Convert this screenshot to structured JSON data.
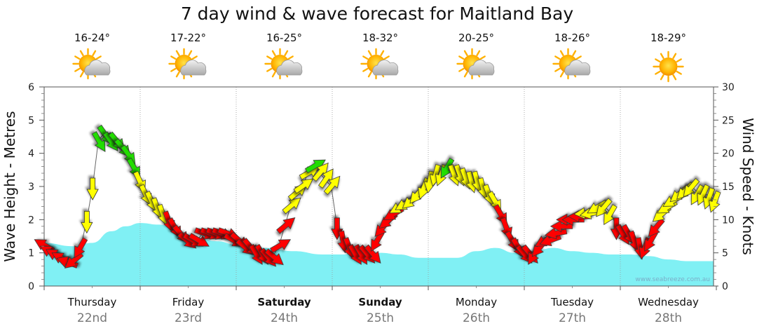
{
  "chart_data": {
    "type": "area",
    "title": "7 day wind & wave forecast for Maitland Bay",
    "ylabel_left": "Wave Height - Metres",
    "ylabel_right": "Wind Speed - Knots",
    "ylim_left": [
      0,
      6
    ],
    "ylim_right": [
      0,
      30
    ],
    "yticks_left": [
      "0",
      "1",
      "2",
      "3",
      "4",
      "5",
      "6"
    ],
    "yticks_right": [
      "0",
      "5",
      "10",
      "15",
      "20",
      "25",
      "30"
    ],
    "credit": "www.seabreeze.com.au",
    "grid": true,
    "days": [
      {
        "name": "Thursday",
        "date": "22nd",
        "temp": "16-24°",
        "icon": "sun-cloud-icon",
        "bold": false
      },
      {
        "name": "Friday",
        "date": "23rd",
        "temp": "17-22°",
        "icon": "sun-cloud-icon",
        "bold": false
      },
      {
        "name": "Saturday",
        "date": "24th",
        "temp": "16-25°",
        "icon": "sun-cloud-icon",
        "bold": true
      },
      {
        "name": "Sunday",
        "date": "25th",
        "temp": "18-32°",
        "icon": "sun-cloud-icon",
        "bold": true
      },
      {
        "name": "Monday",
        "date": "26th",
        "temp": "20-25°",
        "icon": "sun-cloud-icon",
        "bold": false
      },
      {
        "name": "Tuesday",
        "date": "27th",
        "temp": "18-26°",
        "icon": "sun-cloud-icon",
        "bold": false
      },
      {
        "name": "Wednesday",
        "date": "28th",
        "temp": "18-29°",
        "icon": "sun-icon",
        "bold": false
      }
    ],
    "wave_height": [
      [
        0.0,
        1.3
      ],
      [
        0.3,
        1.2
      ],
      [
        0.5,
        1.3
      ],
      [
        0.7,
        1.65
      ],
      [
        0.85,
        1.8
      ],
      [
        1.0,
        1.9
      ],
      [
        1.2,
        1.85
      ],
      [
        1.4,
        1.65
      ],
      [
        1.6,
        1.45
      ],
      [
        1.8,
        1.35
      ],
      [
        2.0,
        1.25
      ],
      [
        2.3,
        1.15
      ],
      [
        2.6,
        1.05
      ],
      [
        2.9,
        0.95
      ],
      [
        3.1,
        0.95
      ],
      [
        3.3,
        1.05
      ],
      [
        3.5,
        1.0
      ],
      [
        3.7,
        0.95
      ],
      [
        3.9,
        0.85
      ],
      [
        4.1,
        0.85
      ],
      [
        4.3,
        0.85
      ],
      [
        4.5,
        1.05
      ],
      [
        4.7,
        1.15
      ],
      [
        4.9,
        1.0
      ],
      [
        5.1,
        1.05
      ],
      [
        5.3,
        1.15
      ],
      [
        5.5,
        1.05
      ],
      [
        5.7,
        1.0
      ],
      [
        5.9,
        0.95
      ],
      [
        6.1,
        0.95
      ],
      [
        6.3,
        0.9
      ],
      [
        6.5,
        0.8
      ],
      [
        6.7,
        0.75
      ],
      [
        7.0,
        0.75
      ]
    ],
    "wind_colors": {
      "light": "#ff0000",
      "moderate": "#ffff00",
      "strong": "#22dd00"
    },
    "wind": [
      {
        "t": 0.0,
        "kn": 6,
        "dir": 300,
        "c": "light"
      },
      {
        "t": 0.08,
        "kn": 5,
        "dir": 300,
        "c": "light"
      },
      {
        "t": 0.16,
        "kn": 4.5,
        "dir": 300,
        "c": "light"
      },
      {
        "t": 0.24,
        "kn": 4,
        "dir": 300,
        "c": "light"
      },
      {
        "t": 0.32,
        "kn": 3.5,
        "dir": 290,
        "c": "light"
      },
      {
        "t": 0.4,
        "kn": 4,
        "dir": 230,
        "c": "light"
      },
      {
        "t": 0.48,
        "kn": 6,
        "dir": 210,
        "c": "light"
      },
      {
        "t": 0.56,
        "kn": 10,
        "dir": 180,
        "c": "moderate"
      },
      {
        "t": 0.64,
        "kn": 15,
        "dir": 180,
        "c": "moderate"
      },
      {
        "t": 0.72,
        "kn": 22,
        "dir": 150,
        "c": "strong"
      },
      {
        "t": 0.8,
        "kn": 23,
        "dir": 145,
        "c": "strong"
      },
      {
        "t": 0.88,
        "kn": 22,
        "dir": 145,
        "c": "strong"
      },
      {
        "t": 0.96,
        "kn": 22,
        "dir": 140,
        "c": "strong"
      },
      {
        "t": 1.04,
        "kn": 21,
        "dir": 140,
        "c": "strong"
      },
      {
        "t": 1.12,
        "kn": 20,
        "dir": 145,
        "c": "strong"
      },
      {
        "t": 1.2,
        "kn": 18,
        "dir": 150,
        "c": "strong"
      },
      {
        "t": 1.28,
        "kn": 16,
        "dir": 155,
        "c": "moderate"
      },
      {
        "t": 1.36,
        "kn": 14,
        "dir": 155,
        "c": "moderate"
      },
      {
        "t": 1.44,
        "kn": 13,
        "dir": 155,
        "c": "moderate"
      },
      {
        "t": 1.52,
        "kn": 12,
        "dir": 160,
        "c": "moderate"
      },
      {
        "t": 1.6,
        "kn": 11,
        "dir": 160,
        "c": "moderate"
      },
      {
        "t": 1.68,
        "kn": 10,
        "dir": 160,
        "c": "light"
      },
      {
        "t": 1.76,
        "kn": 9,
        "dir": 150,
        "c": "light"
      },
      {
        "t": 1.84,
        "kn": 8,
        "dir": 140,
        "c": "light"
      },
      {
        "t": 1.92,
        "kn": 7,
        "dir": 130,
        "c": "light"
      },
      {
        "t": 2.0,
        "kn": 7,
        "dir": 120,
        "c": "light"
      },
      {
        "t": 2.08,
        "kn": 7,
        "dir": 120,
        "c": "light"
      },
      {
        "t": 2.16,
        "kn": 8,
        "dir": 110,
        "c": "light"
      },
      {
        "t": 2.24,
        "kn": 8,
        "dir": 110,
        "c": "light"
      },
      {
        "t": 2.32,
        "kn": 8,
        "dir": 110,
        "c": "light"
      },
      {
        "t": 2.4,
        "kn": 8,
        "dir": 110,
        "c": "light"
      },
      {
        "t": 2.48,
        "kn": 8,
        "dir": 110,
        "c": "light"
      },
      {
        "t": 2.56,
        "kn": 7,
        "dir": 120,
        "c": "light"
      },
      {
        "t": 2.64,
        "kn": 7,
        "dir": 130,
        "c": "light"
      },
      {
        "t": 2.72,
        "kn": 6,
        "dir": 130,
        "c": "light"
      },
      {
        "t": 2.8,
        "kn": 6,
        "dir": 140,
        "c": "light"
      },
      {
        "t": 2.88,
        "kn": 5,
        "dir": 150,
        "c": "light"
      },
      {
        "t": 2.96,
        "kn": 5,
        "dir": 150,
        "c": "light"
      },
      {
        "t": 3.04,
        "kn": 4.5,
        "dir": 140,
        "c": "light"
      },
      {
        "t": 3.12,
        "kn": 4.5,
        "dir": 130,
        "c": "light"
      },
      {
        "t": 3.2,
        "kn": 6,
        "dir": 60,
        "c": "light"
      },
      {
        "t": 3.28,
        "kn": 9,
        "dir": 50,
        "c": "light"
      },
      {
        "t": 3.36,
        "kn": 12,
        "dir": 50,
        "c": "moderate"
      },
      {
        "t": 3.44,
        "kn": 14,
        "dir": 50,
        "c": "moderate"
      },
      {
        "t": 3.52,
        "kn": 15,
        "dir": 55,
        "c": "moderate"
      },
      {
        "t": 3.6,
        "kn": 17,
        "dir": 60,
        "c": "moderate"
      },
      {
        "t": 3.68,
        "kn": 18,
        "dir": 60,
        "c": "strong"
      },
      {
        "t": 3.76,
        "kn": 17,
        "dir": 40,
        "c": "moderate"
      },
      {
        "t": 3.84,
        "kn": 16,
        "dir": 35,
        "c": "moderate"
      },
      {
        "t": 3.92,
        "kn": 15,
        "dir": 40,
        "c": "moderate"
      },
      {
        "t": 4.0,
        "kn": 9,
        "dir": 180,
        "c": "light"
      },
      {
        "t": 4.08,
        "kn": 7,
        "dir": 170,
        "c": "light"
      },
      {
        "t": 4.16,
        "kn": 6,
        "dir": 160,
        "c": "light"
      },
      {
        "t": 4.24,
        "kn": 5,
        "dir": 150,
        "c": "light"
      },
      {
        "t": 4.32,
        "kn": 5,
        "dir": 150,
        "c": "light"
      },
      {
        "t": 4.4,
        "kn": 5,
        "dir": 140,
        "c": "light"
      },
      {
        "t": 4.48,
        "kn": 5,
        "dir": 140,
        "c": "light"
      },
      {
        "t": 4.56,
        "kn": 7,
        "dir": 210,
        "c": "light"
      },
      {
        "t": 4.64,
        "kn": 9,
        "dir": 220,
        "c": "light"
      },
      {
        "t": 4.72,
        "kn": 10,
        "dir": 230,
        "c": "light"
      },
      {
        "t": 4.8,
        "kn": 11,
        "dir": 240,
        "c": "light"
      },
      {
        "t": 4.88,
        "kn": 12,
        "dir": 240,
        "c": "moderate"
      },
      {
        "t": 4.96,
        "kn": 12.5,
        "dir": 240,
        "c": "moderate"
      },
      {
        "t": 5.04,
        "kn": 13,
        "dir": 230,
        "c": "moderate"
      },
      {
        "t": 5.12,
        "kn": 14,
        "dir": 220,
        "c": "moderate"
      },
      {
        "t": 5.2,
        "kn": 15,
        "dir": 200,
        "c": "moderate"
      },
      {
        "t": 5.28,
        "kn": 16,
        "dir": 190,
        "c": "moderate"
      },
      {
        "t": 5.36,
        "kn": 17,
        "dir": 195,
        "c": "moderate"
      },
      {
        "t": 5.44,
        "kn": 17,
        "dir": 200,
        "c": "moderate"
      },
      {
        "t": 5.52,
        "kn": 18,
        "dir": 210,
        "c": "strong"
      },
      {
        "t": 5.6,
        "kn": 17,
        "dir": 160,
        "c": "moderate"
      },
      {
        "t": 5.68,
        "kn": 17,
        "dir": 160,
        "c": "moderate"
      },
      {
        "t": 5.76,
        "kn": 16.5,
        "dir": 160,
        "c": "moderate"
      },
      {
        "t": 5.84,
        "kn": 16,
        "dir": 165,
        "c": "moderate"
      },
      {
        "t": 5.92,
        "kn": 16,
        "dir": 165,
        "c": "moderate"
      },
      {
        "t": 6.0,
        "kn": 15,
        "dir": 165,
        "c": "moderate"
      },
      {
        "t": 6.08,
        "kn": 14,
        "dir": 160,
        "c": "moderate"
      },
      {
        "t": 6.16,
        "kn": 13,
        "dir": 150,
        "c": "moderate"
      },
      {
        "t": 6.24,
        "kn": 11,
        "dir": 150,
        "c": "light"
      },
      {
        "t": 6.32,
        "kn": 9,
        "dir": 160,
        "c": "light"
      },
      {
        "t": 6.4,
        "kn": 7,
        "dir": 150,
        "c": "light"
      },
      {
        "t": 6.48,
        "kn": 6,
        "dir": 150,
        "c": "light"
      },
      {
        "t": 6.56,
        "kn": 5,
        "dir": 140,
        "c": "light"
      },
      {
        "t": 6.64,
        "kn": 5,
        "dir": 140,
        "c": "light"
      },
      {
        "t": 6.72,
        "kn": 5,
        "dir": 210,
        "c": "light"
      },
      {
        "t": 6.8,
        "kn": 6,
        "dir": 220,
        "c": "light"
      },
      {
        "t": 6.88,
        "kn": 7,
        "dir": 240,
        "c": "light"
      },
      {
        "t": 6.96,
        "kn": 7,
        "dir": 250,
        "c": "light"
      },
      {
        "t": 7.04,
        "kn": 8,
        "dir": 260,
        "c": "light"
      },
      {
        "t": 7.12,
        "kn": 9,
        "dir": 270,
        "c": "light"
      },
      {
        "t": 7.2,
        "kn": 10,
        "dir": 270,
        "c": "light"
      },
      {
        "t": 7.28,
        "kn": 10,
        "dir": 270,
        "c": "light"
      },
      {
        "t": 7.36,
        "kn": 10.5,
        "dir": 270,
        "c": "light"
      },
      {
        "t": 7.44,
        "kn": 11,
        "dir": 265,
        "c": "moderate"
      },
      {
        "t": 7.52,
        "kn": 11,
        "dir": 260,
        "c": "moderate"
      },
      {
        "t": 7.6,
        "kn": 12,
        "dir": 240,
        "c": "moderate"
      },
      {
        "t": 7.68,
        "kn": 12,
        "dir": 220,
        "c": "moderate"
      },
      {
        "t": 7.76,
        "kn": 11,
        "dir": 210,
        "c": "moderate"
      },
      {
        "t": 7.84,
        "kn": 9,
        "dir": 180,
        "c": "light"
      },
      {
        "t": 7.92,
        "kn": 8,
        "dir": 150,
        "c": "light"
      },
      {
        "t": 8.0,
        "kn": 8,
        "dir": 150,
        "c": "light"
      },
      {
        "t": 8.08,
        "kn": 7,
        "dir": 160,
        "c": "light"
      },
      {
        "t": 8.16,
        "kn": 6,
        "dir": 170,
        "c": "light"
      },
      {
        "t": 8.24,
        "kn": 6,
        "dir": 200,
        "c": "light"
      },
      {
        "t": 8.32,
        "kn": 7,
        "dir": 210,
        "c": "light"
      },
      {
        "t": 8.4,
        "kn": 9,
        "dir": 220,
        "c": "light"
      },
      {
        "t": 8.48,
        "kn": 11,
        "dir": 230,
        "c": "moderate"
      },
      {
        "t": 8.56,
        "kn": 12,
        "dir": 240,
        "c": "moderate"
      },
      {
        "t": 8.64,
        "kn": 13,
        "dir": 240,
        "c": "moderate"
      },
      {
        "t": 8.72,
        "kn": 14,
        "dir": 230,
        "c": "moderate"
      },
      {
        "t": 8.8,
        "kn": 14.5,
        "dir": 225,
        "c": "moderate"
      },
      {
        "t": 8.88,
        "kn": 15,
        "dir": 220,
        "c": "moderate"
      },
      {
        "t": 8.96,
        "kn": 14,
        "dir": 210,
        "c": "moderate"
      },
      {
        "t": 9.04,
        "kn": 14,
        "dir": 205,
        "c": "moderate"
      },
      {
        "t": 9.12,
        "kn": 13.5,
        "dir": 200,
        "c": "moderate"
      },
      {
        "t": 9.2,
        "kn": 13,
        "dir": 200,
        "c": "moderate"
      }
    ]
  }
}
